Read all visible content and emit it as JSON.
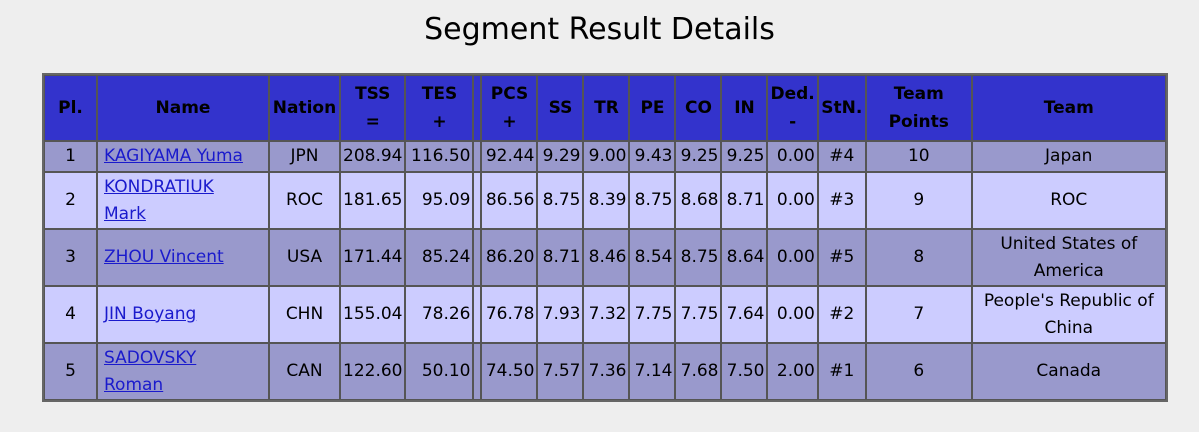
{
  "page": {
    "title": "Segment Result Details"
  },
  "table": {
    "headers": {
      "pl": "Pl.",
      "name": "Name",
      "nation": "Nation",
      "tss": [
        "TSS",
        "="
      ],
      "tes": [
        "TES",
        "+"
      ],
      "pcs": [
        "PCS",
        "+"
      ],
      "ss": "SS",
      "tr": "TR",
      "pe": "PE",
      "co": "CO",
      "in": "IN",
      "ded": [
        "Ded.",
        "-"
      ],
      "stn": "StN.",
      "team_points": [
        "Team",
        "Points"
      ],
      "team": "Team"
    },
    "rows": [
      {
        "pl": "1",
        "name": [
          "KAGIYAMA Yuma"
        ],
        "nation": "JPN",
        "tss": "208.94",
        "tes": "116.50",
        "pcs": "92.44",
        "ss": "9.29",
        "tr": "9.00",
        "pe": "9.43",
        "co": "9.25",
        "in": "9.25",
        "ded": "0.00",
        "stn": "#4",
        "team_points": "10",
        "team": [
          "Japan"
        ]
      },
      {
        "pl": "2",
        "name": [
          "KONDRATIUK",
          "Mark"
        ],
        "nation": "ROC",
        "tss": "181.65",
        "tes": "95.09",
        "pcs": "86.56",
        "ss": "8.75",
        "tr": "8.39",
        "pe": "8.75",
        "co": "8.68",
        "in": "8.71",
        "ded": "0.00",
        "stn": "#3",
        "team_points": "9",
        "team": [
          "ROC"
        ]
      },
      {
        "pl": "3",
        "name": [
          "ZHOU Vincent"
        ],
        "nation": "USA",
        "tss": "171.44",
        "tes": "85.24",
        "pcs": "86.20",
        "ss": "8.71",
        "tr": "8.46",
        "pe": "8.54",
        "co": "8.75",
        "in": "8.64",
        "ded": "0.00",
        "stn": "#5",
        "team_points": "8",
        "team": [
          "United States of",
          "America"
        ]
      },
      {
        "pl": "4",
        "name": [
          "JIN Boyang"
        ],
        "nation": "CHN",
        "tss": "155.04",
        "tes": "78.26",
        "pcs": "76.78",
        "ss": "7.93",
        "tr": "7.32",
        "pe": "7.75",
        "co": "7.75",
        "in": "7.64",
        "ded": "0.00",
        "stn": "#2",
        "team_points": "7",
        "team": [
          "People's Republic of",
          "China"
        ]
      },
      {
        "pl": "5",
        "name": [
          "SADOVSKY",
          "Roman"
        ],
        "nation": "CAN",
        "tss": "122.60",
        "tes": "50.10",
        "pcs": "74.50",
        "ss": "7.57",
        "tr": "7.36",
        "pe": "7.14",
        "co": "7.68",
        "in": "7.50",
        "ded": "2.00",
        "stn": "#1",
        "team_points": "6",
        "team": [
          "Canada"
        ]
      }
    ]
  }
}
